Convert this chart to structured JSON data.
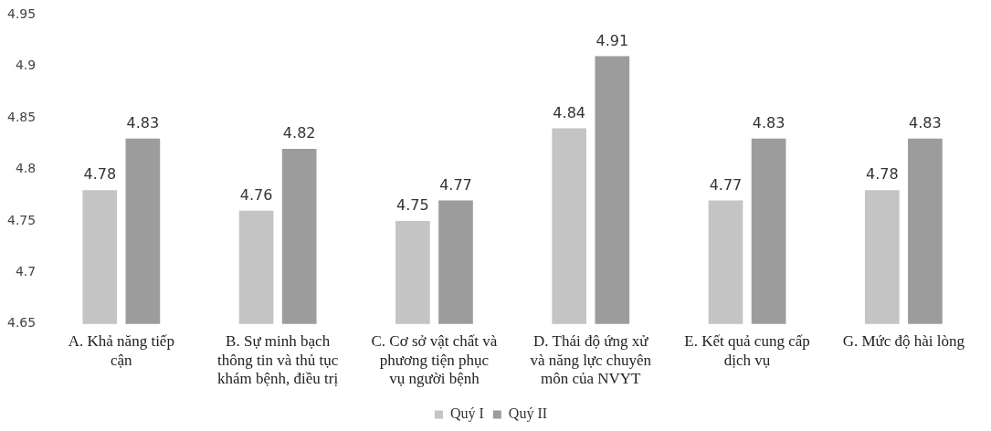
{
  "chart_data": {
    "type": "bar",
    "categories": [
      "A. Khả năng tiếp cận",
      "B. Sự minh bạch thông tin và thủ tục khám bệnh, điều trị",
      "C. Cơ sở vật chất và phương tiện phục vụ người bệnh",
      "D. Thái độ ứng xử và năng lực chuyên môn của NVYT",
      "E. Kết quả cung cấp dịch vụ",
      "G. Mức độ hài lòng"
    ],
    "series": [
      {
        "name": "Quý I",
        "color": "#c4c4c4",
        "values": [
          4.78,
          4.76,
          4.75,
          4.84,
          4.77,
          4.78
        ]
      },
      {
        "name": "Quý II",
        "color": "#9c9c9c",
        "values": [
          4.83,
          4.82,
          4.77,
          4.91,
          4.83,
          4.83
        ]
      }
    ],
    "ylim": [
      4.65,
      4.95
    ],
    "yticks": [
      4.65,
      4.7,
      4.75,
      4.8,
      4.85,
      4.9,
      4.95
    ],
    "grid": false,
    "legend": "bottom",
    "data_labels": true
  }
}
